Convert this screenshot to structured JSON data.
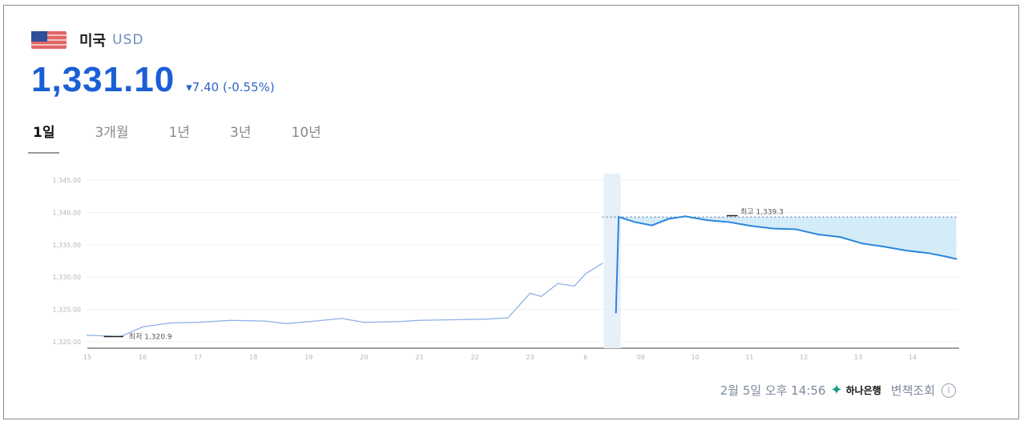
{
  "header": {
    "country": "미국",
    "currency": "USD",
    "flag_icon": "us-flag-icon"
  },
  "price": {
    "value": "1,331.10",
    "change": "▾7.40 (-0.55%)"
  },
  "tabs": [
    {
      "label": "1일",
      "active": true
    },
    {
      "label": "3개월",
      "active": false
    },
    {
      "label": "1년",
      "active": false
    },
    {
      "label": "3년",
      "active": false
    },
    {
      "label": "10년",
      "active": false
    }
  ],
  "chart_data": {
    "type": "line",
    "ylabel_ticks": [
      "1,345.00",
      "1,340.00",
      "1,335.00",
      "1,330.00",
      "1,325.00",
      "1,320.00"
    ],
    "y_ticks": [
      1345,
      1340,
      1335,
      1330,
      1325,
      1320
    ],
    "xlabel_ticks": [
      "15",
      "16",
      "17",
      "18",
      "19",
      "20",
      "21",
      "22",
      "23",
      "6",
      "09",
      "10",
      "11",
      "12",
      "13",
      "14"
    ],
    "ylim": [
      1319,
      1346
    ],
    "grid": true,
    "series": [
      {
        "prev_day": {
          "x": [
            0.0,
            0.6,
            1.0,
            1.5,
            2.0,
            2.6,
            3.2,
            3.6,
            4.0,
            4.6,
            5.0,
            5.6,
            6.0,
            6.6,
            7.2,
            7.6,
            8.0,
            8.2,
            8.5,
            8.8,
            9.0,
            9.3
          ],
          "y": [
            1321.0,
            1320.8,
            1322.3,
            1322.9,
            1323.0,
            1323.3,
            1323.2,
            1322.8,
            1323.1,
            1323.6,
            1323.0,
            1323.1,
            1323.3,
            1323.4,
            1323.5,
            1323.7,
            1327.5,
            1327.0,
            1329.0,
            1328.6,
            1330.5,
            1332.1
          ]
        },
        "today": {
          "x": [
            9.55,
            9.6,
            9.9,
            10.2,
            10.5,
            10.8,
            11.2,
            11.6,
            12.0,
            12.4,
            12.8,
            13.2,
            13.6,
            14.0,
            14.4,
            14.8,
            15.2,
            15.5,
            15.7
          ],
          "y": [
            1324.5,
            1339.3,
            1338.5,
            1338.0,
            1339.0,
            1339.4,
            1338.8,
            1338.5,
            1337.9,
            1337.5,
            1337.4,
            1336.6,
            1336.2,
            1335.2,
            1334.7,
            1334.1,
            1333.7,
            1333.2,
            1332.8
          ]
        }
      }
    ],
    "annotations": {
      "low_label": "최저 1,320.9",
      "high_label": "최고 1,339.3"
    }
  },
  "footer": {
    "timestamp": "2월 5일 오후 14:56",
    "brand": "하나은행",
    "brand_icon": "hana-bank-icon",
    "policy": "변책조회",
    "info_icon": "info-icon"
  }
}
